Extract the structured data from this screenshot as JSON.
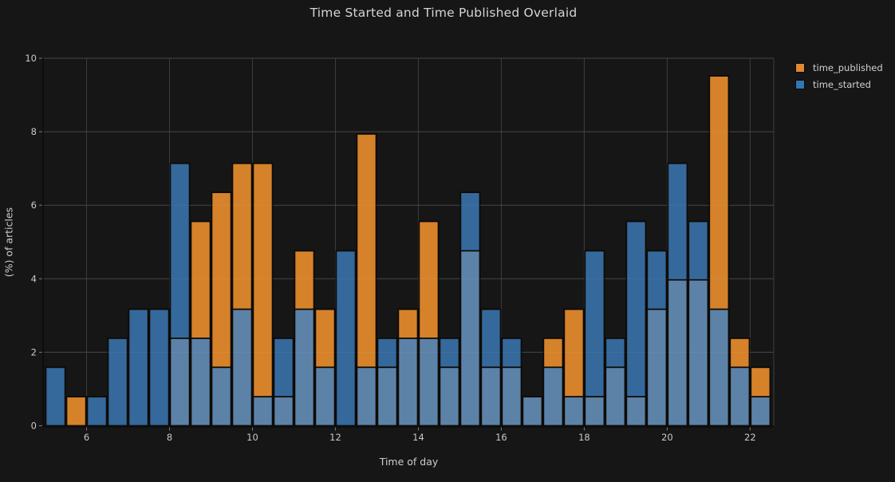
{
  "title": "Time Started and Time Published Overlaid",
  "colors": {
    "background": "#161616",
    "grid": "#3d3d3d",
    "text": "#c9c9c9",
    "spine": "#0d0d0d",
    "tick_mark": "#7a7a7a",
    "bar_edge": "#0e0b07",
    "bar_published": "#d6822b",
    "bar_started": "#35699c",
    "bar_overlap": "#5d82a8",
    "legend_published": "#de8a30",
    "legend_started": "#3277b0"
  },
  "legend": {
    "items": [
      {
        "label": "time_published",
        "color_key": "legend_published"
      },
      {
        "label": "time_started",
        "color_key": "legend_started"
      }
    ]
  },
  "chart_data": {
    "type": "bar",
    "subtype": "overlaid-histogram",
    "title": "Time Started and Time Published Overlaid",
    "xlabel": "Time of day",
    "ylabel": "(%) of articles",
    "bin_start": 5.0,
    "bin_width": 0.5,
    "x_bins": [
      5.0,
      5.5,
      6.0,
      6.5,
      7.0,
      7.5,
      8.0,
      8.5,
      9.0,
      9.5,
      10.0,
      10.5,
      11.0,
      11.5,
      12.0,
      12.5,
      13.0,
      13.5,
      14.0,
      14.5,
      15.0,
      15.5,
      16.0,
      16.5,
      17.0,
      17.5,
      18.0,
      18.5,
      19.0,
      19.5,
      20.0,
      20.5,
      21.0,
      21.5,
      22.0
    ],
    "series": [
      {
        "name": "time_published",
        "values": [
          0,
          0.79,
          0,
          0,
          0,
          0,
          2.38,
          5.56,
          6.35,
          7.14,
          7.14,
          0.79,
          4.76,
          3.17,
          0,
          7.94,
          1.59,
          3.17,
          5.56,
          1.59,
          4.76,
          1.59,
          1.59,
          0.79,
          2.38,
          3.17,
          0.79,
          1.59,
          0.79,
          3.17,
          3.97,
          3.97,
          9.52,
          2.38,
          1.59
        ]
      },
      {
        "name": "time_started",
        "values": [
          1.59,
          0,
          0.79,
          2.38,
          3.17,
          3.17,
          7.14,
          2.38,
          1.59,
          3.17,
          0.79,
          2.38,
          3.17,
          1.59,
          4.76,
          1.59,
          2.38,
          2.38,
          2.38,
          2.38,
          6.35,
          3.17,
          2.38,
          0.79,
          1.59,
          0.79,
          4.76,
          2.38,
          5.56,
          4.76,
          7.14,
          5.56,
          3.17,
          1.59,
          0.79
        ]
      }
    ],
    "xticks": [
      6,
      8,
      10,
      12,
      14,
      16,
      18,
      20,
      22
    ],
    "yticks": [
      0,
      2,
      4,
      6,
      8,
      10
    ],
    "xlim": [
      4.97,
      22.57
    ],
    "ylim": [
      0,
      10
    ],
    "grid": true,
    "legend_position": "outside-right-top"
  }
}
